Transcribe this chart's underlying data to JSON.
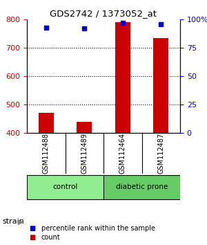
{
  "title": "GDS2742 / 1373052_at",
  "samples": [
    "GSM112488",
    "GSM112489",
    "GSM112464",
    "GSM112487"
  ],
  "counts": [
    470,
    440,
    790,
    735
  ],
  "percentiles": [
    93,
    92,
    97,
    96
  ],
  "groups": [
    {
      "label": "control",
      "color": "#90EE90",
      "samples": [
        0,
        1
      ]
    },
    {
      "label": "diabetic prone",
      "color": "#66CC66",
      "samples": [
        2,
        3
      ]
    }
  ],
  "ylim_left": [
    400,
    800
  ],
  "ylim_right": [
    0,
    100
  ],
  "yticks_left": [
    400,
    500,
    600,
    700,
    800
  ],
  "yticks_right": [
    0,
    25,
    50,
    75,
    100
  ],
  "ytick_labels_right": [
    "0",
    "25",
    "50",
    "75",
    "100%"
  ],
  "bar_color": "#CC0000",
  "dot_color": "#0000CC",
  "bar_width": 0.4,
  "grid_color": "#000000",
  "bg_color": "#FFFFFF",
  "sample_row_color": "#C8C8C8",
  "strain_label": "strain",
  "legend_items": [
    {
      "color": "#CC0000",
      "label": "count"
    },
    {
      "color": "#0000CC",
      "label": "percentile rank within the sample"
    }
  ]
}
